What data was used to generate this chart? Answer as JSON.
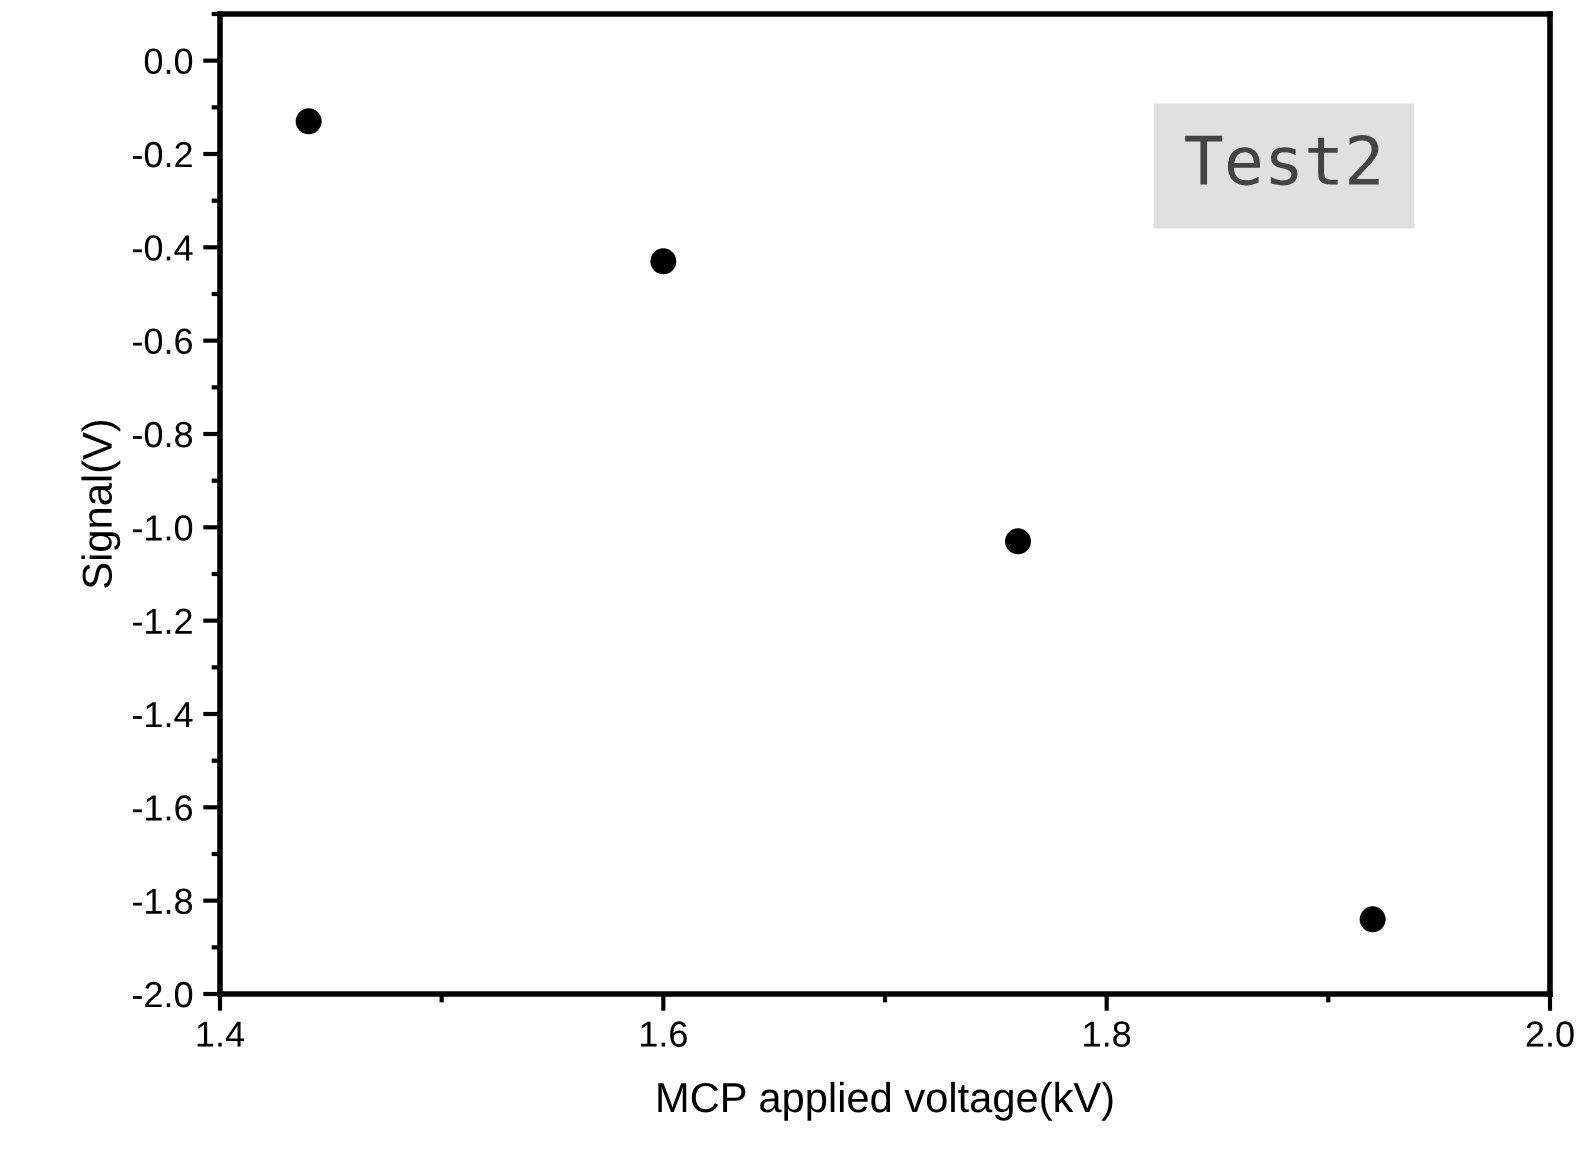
{
  "chart_data": {
    "type": "scatter",
    "xlabel": "MCP applied voltage(kV)",
    "ylabel": "Signal(V)",
    "x": [
      1.44,
      1.6,
      1.76,
      1.92
    ],
    "series": [
      {
        "color": "#000000",
        "values": [
          -0.13,
          -0.43,
          -1.03,
          -1.84
        ]
      }
    ],
    "xlim": [
      1.4,
      2.0
    ],
    "xticks": [
      1.4,
      1.6,
      1.8,
      {
        "value": 2,
        "label": "2.0"
      }
    ],
    "ylim": [
      -2.0,
      0.1
    ],
    "yticks": [
      {
        "value": 0,
        "label": "0.0"
      },
      -0.2,
      -0.4,
      -0.6,
      -0.8,
      {
        "value": -1,
        "label": "-1.0"
      },
      -1.2,
      -1.4,
      -1.6,
      -1.8,
      {
        "value": -2,
        "label": "-2.0"
      }
    ],
    "marker": "circle",
    "grid": false,
    "legend": false,
    "annotations": [
      "Test2"
    ]
  }
}
